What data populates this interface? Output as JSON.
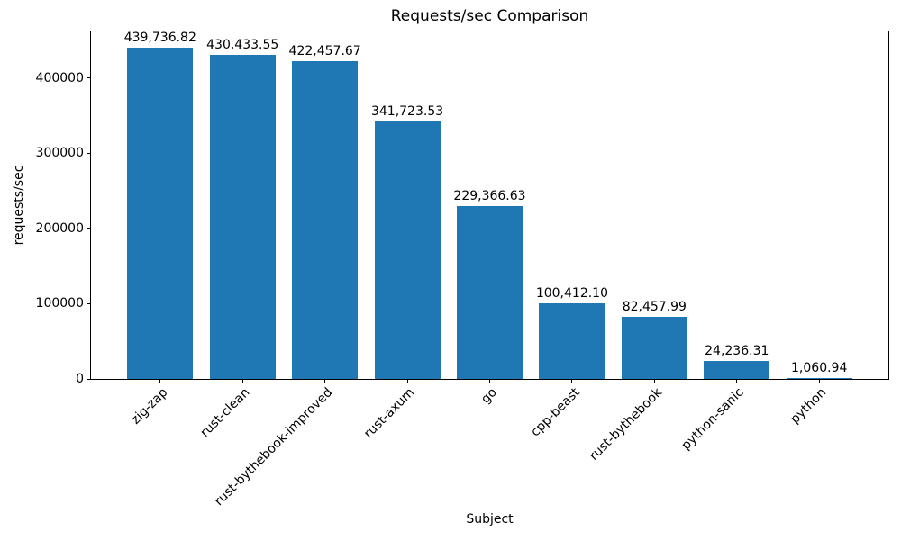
{
  "chart_data": {
    "type": "bar",
    "title": "Requests/sec Comparison",
    "xlabel": "Subject",
    "ylabel": "requests/sec",
    "categories": [
      "zig-zap",
      "rust-clean",
      "rust-bythebook-improved",
      "rust-axum",
      "go",
      "cpp-beast",
      "rust-bythebook",
      "python-sanic",
      "python"
    ],
    "values": [
      439736.82,
      430433.55,
      422457.67,
      341723.53,
      229366.63,
      100412.1,
      82457.99,
      24236.31,
      1060.94
    ],
    "value_labels": [
      "439,736.82",
      "430,433.55",
      "422,457.67",
      "341,723.53",
      "229,366.63",
      "100,412.10",
      "82,457.99",
      "24,236.31",
      "1,060.94"
    ],
    "ylim": [
      0,
      461723.66
    ],
    "yticks": [
      0,
      100000,
      200000,
      300000,
      400000
    ],
    "ytick_labels": [
      "0",
      "100000",
      "200000",
      "300000",
      "400000"
    ],
    "bar_color": "#1f77b4",
    "bar_width_fraction": 0.8,
    "x_margin_fraction": 0.05,
    "grid": false,
    "legend": "none",
    "xtick_rotation_deg": 45
  }
}
